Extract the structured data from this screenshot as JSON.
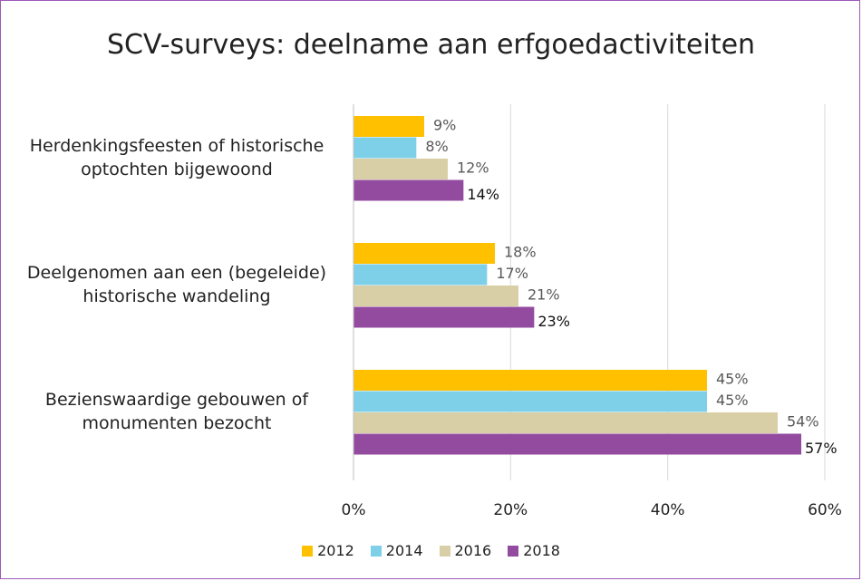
{
  "chart_data": {
    "type": "bar",
    "orientation": "horizontal",
    "title": "SCV-surveys: deelname aan erfgoedactiviteiten",
    "categories": [
      "Herdenkingsfeesten of historische optochten bijgewoond",
      "Deelgenomen aan een (begeleide) historische wandeling",
      "Bezienswaardige gebouwen of monumenten bezocht"
    ],
    "category_lines": [
      [
        "Herdenkingsfeesten of historische",
        "optochten bijgewoond"
      ],
      [
        "Deelgenomen aan een (begeleide)",
        "historische wandeling"
      ],
      [
        "Bezienswaardige gebouwen of",
        "monumenten bezocht"
      ]
    ],
    "series": [
      {
        "name": "2012",
        "color": "#ffc000",
        "values": [
          9,
          18,
          45
        ],
        "labels": [
          "9%",
          "18%",
          "45%"
        ]
      },
      {
        "name": "2014",
        "color": "#7ecfe8",
        "values": [
          8,
          17,
          45
        ],
        "labels": [
          "8%",
          "17%",
          "45%"
        ]
      },
      {
        "name": "2016",
        "color": "#d9cfa6",
        "values": [
          12,
          21,
          54
        ],
        "labels": [
          "12%",
          "21%",
          "54%"
        ]
      },
      {
        "name": "2018",
        "color": "#934ba0",
        "values": [
          14,
          23,
          57
        ],
        "labels": [
          "14%",
          "23%",
          "57%"
        ]
      }
    ],
    "xlim": [
      0,
      60
    ],
    "xticks": [
      0,
      20,
      40,
      60
    ],
    "xtick_labels": [
      "0%",
      "20%",
      "40%",
      "60%"
    ],
    "grid": true,
    "legend": "bottom"
  }
}
